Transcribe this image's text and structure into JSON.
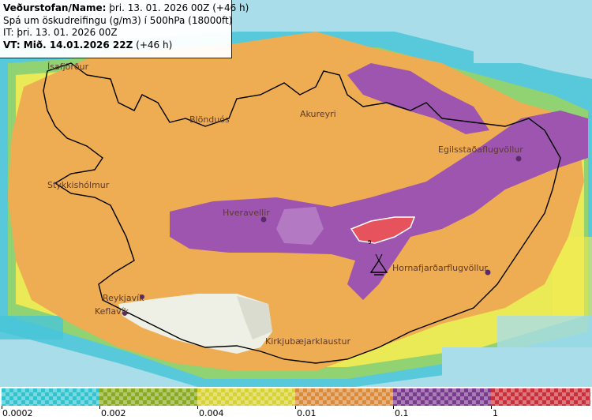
{
  "info": {
    "line1_bold": "Veðurstofan/Name:",
    "line1_rest": " þri. 13. 01. 2026 00Z (+46 h)",
    "line2": "Spá um öskudreifingu (g/m3) í 500hPa (18000ft)",
    "line3": "IT: þri. 13. 01. 2026 00Z",
    "line4_bold": "VT: Mið. 14.01.2026 22Z",
    "line4_rest": " (+46 h)"
  },
  "places": [
    {
      "name": "Ísafjörður"
    },
    {
      "name": "Akureyri"
    },
    {
      "name": "Blönduós"
    },
    {
      "name": "Egilsstaðaflugvöllur"
    },
    {
      "name": "Stykkishólmur"
    },
    {
      "name": "Hveravellir"
    },
    {
      "name": "Hornafjarðarflugvöllur"
    },
    {
      "name": "Reykjavík"
    },
    {
      "name": "Keflavík"
    },
    {
      "name": "Kirkjubæjarklaustur"
    }
  ],
  "volcano": {
    "icon": "volcano-icon",
    "marker_label": "9"
  },
  "legend": {
    "labels": [
      "0.0002",
      "0.002",
      "0.004",
      "0.01",
      "0.1",
      "1"
    ],
    "colors": [
      "#33c3cf",
      "#8aaa22",
      "#d8d234",
      "#d98a3a",
      "#7a3a8e",
      "#c9303a"
    ]
  },
  "colors": {
    "sea": "#a9dde9",
    "band_0002": "#49c6d8",
    "band_002": "#9bd35f",
    "band_004": "#f3ec52",
    "band_001": "#eead52",
    "band_01": "#9d55b0",
    "band_1": "#e6535c",
    "land_clear": "#eef0e6"
  }
}
